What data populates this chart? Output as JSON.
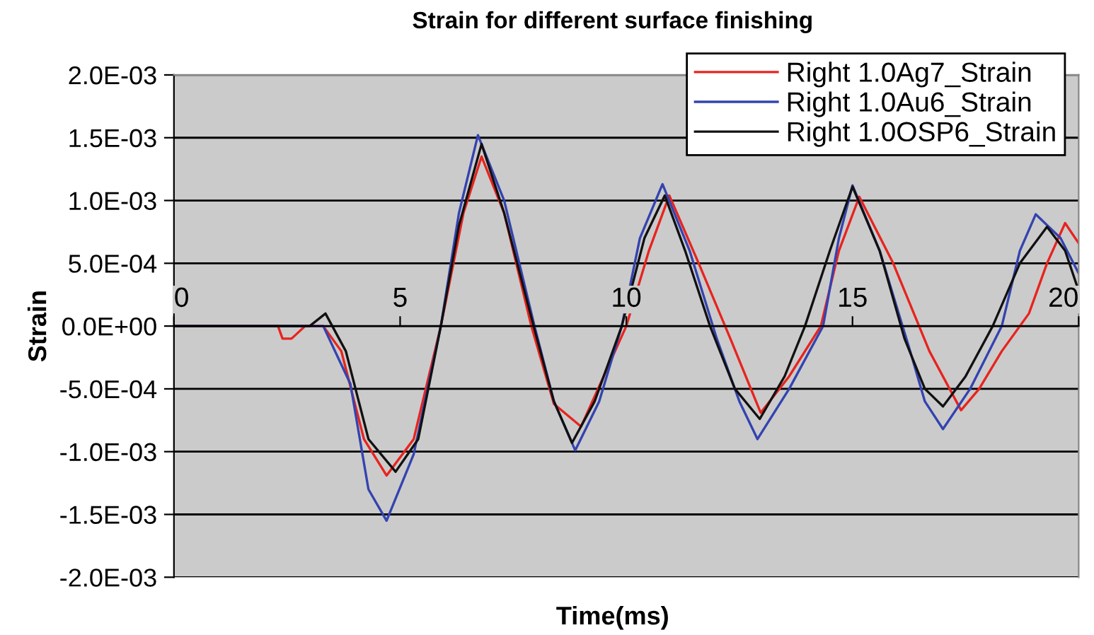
{
  "chart_data": {
    "type": "line",
    "title": "Strain for different surface finishing",
    "xlabel": "Time(ms)",
    "ylabel": "Strain",
    "xlim": [
      0,
      20
    ],
    "xticks": [
      0,
      5,
      10,
      15,
      20
    ],
    "ylim": [
      -0.002,
      0.002
    ],
    "yticks": [
      {
        "value": -0.002,
        "label": "-2.0E-03"
      },
      {
        "value": -0.0015,
        "label": "-1.5E-03"
      },
      {
        "value": -0.001,
        "label": "-1.0E-03"
      },
      {
        "value": -0.0005,
        "label": "-5.0E-04"
      },
      {
        "value": 0,
        "label": "0.0E+00"
      },
      {
        "value": 0.0005,
        "label": "5.0E-04"
      },
      {
        "value": 0.001,
        "label": "1.0E-03"
      },
      {
        "value": 0.0015,
        "label": "1.5E-03"
      },
      {
        "value": 0.002,
        "label": "2.0E-03"
      }
    ],
    "grid": "y",
    "legend": "top right",
    "line_style": "solid",
    "series": [
      {
        "name": "Right 1.0Ag7_Strain",
        "color": "#e8231e",
        "x": [
          0,
          2.3,
          2.4,
          2.6,
          2.9,
          3.3,
          3.7,
          4.2,
          4.7,
          5.3,
          5.9,
          6.4,
          6.8,
          7.3,
          7.9,
          8.4,
          9.0,
          9.5,
          10.0,
          10.5,
          10.95,
          11.6,
          12.3,
          12.97,
          13.6,
          14.3,
          14.7,
          15.15,
          15.9,
          16.7,
          17.4,
          17.8,
          18.3,
          18.9,
          19.3,
          19.7,
          20
        ],
        "values": [
          0,
          0,
          -0.0001,
          -0.0001,
          0,
          0,
          -0.0002,
          -0.0009,
          -0.00119,
          -0.0009,
          0,
          0.0009,
          0.00135,
          0.0009,
          0,
          -0.00062,
          -0.0008,
          -0.0004,
          0,
          0.0006,
          0.00104,
          0.0005,
          -0.0001,
          -0.00069,
          -0.0004,
          0,
          0.0006,
          0.00103,
          0.0005,
          -0.0002,
          -0.00067,
          -0.0005,
          -0.0002,
          0.0001,
          0.0005,
          0.00082,
          0.00066
        ]
      },
      {
        "name": "Right 1.0Au6_Strain",
        "color": "#3343b0",
        "x": [
          0,
          3.3,
          3.9,
          4.3,
          4.7,
          5.3,
          5.9,
          6.3,
          6.72,
          7.3,
          7.97,
          8.4,
          8.87,
          9.4,
          9.9,
          10.3,
          10.8,
          11.4,
          12.0,
          12.5,
          12.9,
          13.6,
          14.35,
          14.7,
          15.0,
          15.6,
          16.25,
          16.6,
          17.0,
          17.6,
          18.3,
          18.7,
          19.05,
          19.6,
          20
        ],
        "values": [
          0,
          0,
          -0.00046,
          -0.0013,
          -0.00155,
          -0.00102,
          0,
          0.0009,
          0.00152,
          0.001,
          0,
          -0.0006,
          -0.00099,
          -0.0006,
          0,
          0.0007,
          0.00113,
          0.0006,
          -0.0001,
          -0.0006,
          -0.0009,
          -0.0005,
          0,
          0.0007,
          0.00112,
          0.0006,
          -0.00017,
          -0.0006,
          -0.00082,
          -0.0005,
          0,
          0.0006,
          0.00089,
          0.0007,
          0.00042
        ]
      },
      {
        "name": "Right 1.0OSP6_Strain",
        "color": "#111111",
        "x": [
          0,
          3.0,
          3.35,
          3.8,
          4.3,
          4.9,
          5.4,
          5.9,
          6.3,
          6.8,
          7.3,
          7.95,
          8.4,
          8.8,
          9.3,
          9.9,
          10.4,
          10.85,
          11.3,
          11.85,
          12.4,
          12.95,
          13.5,
          13.95,
          14.5,
          15.0,
          15.6,
          16.15,
          16.6,
          17.0,
          17.5,
          18.1,
          18.7,
          19.3,
          19.7,
          20
        ],
        "values": [
          0,
          0,
          0.0001,
          -0.0002,
          -0.0009,
          -0.00116,
          -0.0009,
          0,
          0.0008,
          0.00145,
          0.0009,
          0,
          -0.0006,
          -0.00093,
          -0.0006,
          0,
          0.0007,
          0.00104,
          0.0006,
          0,
          -0.0005,
          -0.00074,
          -0.0004,
          0,
          0.0006,
          0.00111,
          0.0006,
          -0.0001,
          -0.0005,
          -0.00064,
          -0.0004,
          0,
          0.0005,
          0.00079,
          0.0006,
          0.00028
        ]
      }
    ]
  }
}
